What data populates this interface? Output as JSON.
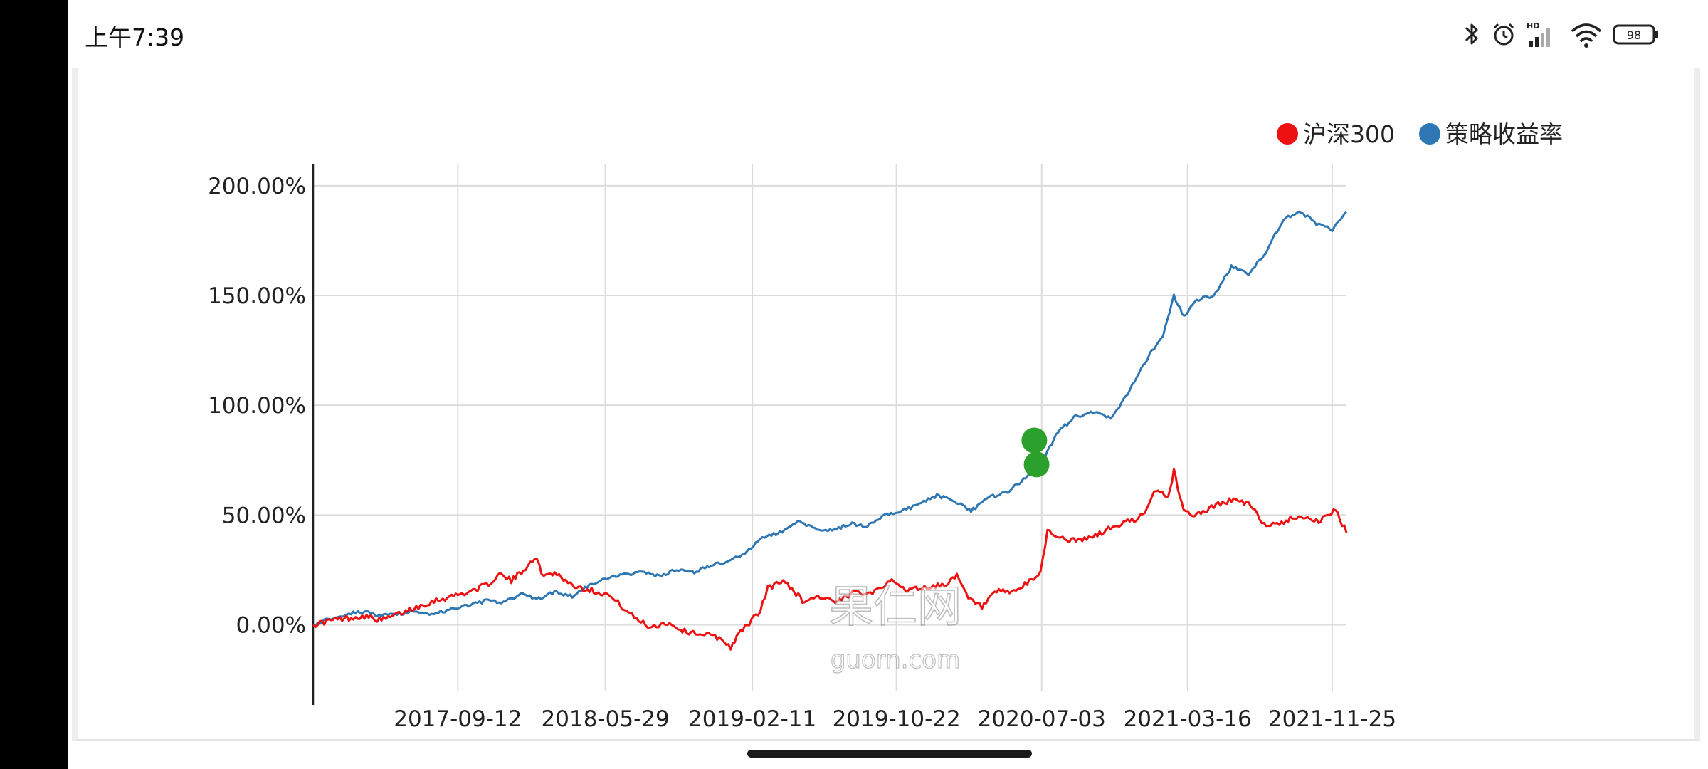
{
  "status_bar": {
    "time": "上午7:39",
    "battery": "98",
    "network_badge": "HD",
    "icons": [
      "bluetooth-icon",
      "alarm-icon",
      "cellular-signal-icon",
      "wifi-icon",
      "battery-icon"
    ]
  },
  "watermark": {
    "line1": "果仁网",
    "line2": "guorn.com"
  },
  "chart_data": {
    "type": "line",
    "title": "",
    "xlabel": "",
    "ylabel": "",
    "x_start": "2017-01-01",
    "x_end": "2021-12-20",
    "x_ticks": [
      "2017-09-12",
      "2018-05-29",
      "2019-02-11",
      "2019-10-22",
      "2020-07-03",
      "2021-03-16",
      "2021-11-25"
    ],
    "y_ticks": [
      "0.00%",
      "50.00%",
      "100.00%",
      "150.00%",
      "200.00%"
    ],
    "ylim": [
      -30,
      210
    ],
    "grid": true,
    "legend_position": "top-right",
    "colors": {
      "hs300": "#ee1111",
      "strategy": "#2f77b3",
      "marker": "#2ca02c"
    },
    "series": [
      {
        "name": "沪深300",
        "x": [
          "2017-01-01",
          "2017-02-01",
          "2017-03-01",
          "2017-04-01",
          "2017-05-01",
          "2017-06-01",
          "2017-07-01",
          "2017-08-01",
          "2017-09-01",
          "2017-10-01",
          "2017-11-01",
          "2017-11-25",
          "2017-12-15",
          "2018-01-05",
          "2018-01-25",
          "2018-02-10",
          "2018-03-01",
          "2018-04-01",
          "2018-05-01",
          "2018-06-01",
          "2018-06-20",
          "2018-07-15",
          "2018-08-15",
          "2018-09-15",
          "2018-10-15",
          "2018-11-15",
          "2018-12-15",
          "2019-01-04",
          "2019-01-25",
          "2019-02-25",
          "2019-03-10",
          "2019-04-10",
          "2019-05-10",
          "2019-06-10",
          "2019-07-10",
          "2019-08-10",
          "2019-09-10",
          "2019-10-10",
          "2019-11-10",
          "2019-12-10",
          "2020-01-10",
          "2020-02-05",
          "2020-02-25",
          "2020-03-20",
          "2020-04-15",
          "2020-05-15",
          "2020-06-15",
          "2020-07-01",
          "2020-07-13",
          "2020-08-01",
          "2020-09-01",
          "2020-10-01",
          "2020-11-01",
          "2020-12-01",
          "2020-12-31",
          "2021-01-20",
          "2021-02-10",
          "2021-02-20",
          "2021-03-09",
          "2021-04-01",
          "2021-05-01",
          "2021-06-01",
          "2021-07-01",
          "2021-08-01",
          "2021-09-01",
          "2021-10-01",
          "2021-11-01",
          "2021-12-01",
          "2021-12-20"
        ],
        "y": [
          0,
          2,
          3,
          4,
          2,
          5,
          8,
          11,
          13,
          15,
          18,
          23,
          20,
          25,
          31,
          22,
          24,
          18,
          16,
          14,
          10,
          4,
          -1,
          1,
          -3,
          -4,
          -6,
          -10,
          -2,
          6,
          17,
          20,
          11,
          13,
          10,
          15,
          15,
          20,
          16,
          17,
          18,
          22,
          12,
          8,
          15,
          15,
          20,
          24,
          43,
          40,
          38,
          40,
          44,
          47,
          50,
          62,
          58,
          70,
          52,
          50,
          54,
          57,
          55,
          45,
          47,
          50,
          47,
          52,
          42
        ]
      },
      {
        "name": "策略收益率",
        "x": [
          "2017-01-01",
          "2017-02-01",
          "2017-03-01",
          "2017-04-01",
          "2017-05-01",
          "2017-06-01",
          "2017-07-01",
          "2017-08-01",
          "2017-09-01",
          "2017-10-01",
          "2017-11-01",
          "2017-12-01",
          "2018-01-01",
          "2018-02-01",
          "2018-03-01",
          "2018-04-01",
          "2018-05-01",
          "2018-06-01",
          "2018-07-01",
          "2018-08-01",
          "2018-09-01",
          "2018-10-01",
          "2018-11-01",
          "2018-12-01",
          "2019-01-01",
          "2019-02-01",
          "2019-03-01",
          "2019-04-01",
          "2019-05-01",
          "2019-06-01",
          "2019-07-01",
          "2019-08-01",
          "2019-09-01",
          "2019-10-01",
          "2019-11-01",
          "2019-12-01",
          "2020-01-01",
          "2020-02-01",
          "2020-03-01",
          "2020-04-01",
          "2020-05-01",
          "2020-06-01",
          "2020-07-01",
          "2020-08-01",
          "2020-09-01",
          "2020-10-01",
          "2020-11-01",
          "2020-12-01",
          "2021-01-01",
          "2021-02-01",
          "2021-02-20",
          "2021-03-10",
          "2021-04-01",
          "2021-05-01",
          "2021-06-01",
          "2021-07-01",
          "2021-08-01",
          "2021-09-01",
          "2021-10-01",
          "2021-11-01",
          "2021-11-25",
          "2021-12-20"
        ],
        "y": [
          0,
          3,
          5,
          6,
          4,
          5,
          6,
          5,
          7,
          9,
          11,
          10,
          14,
          12,
          15,
          13,
          18,
          21,
          23,
          24,
          22,
          25,
          24,
          27,
          29,
          33,
          40,
          42,
          47,
          44,
          43,
          46,
          45,
          50,
          52,
          55,
          59,
          56,
          52,
          58,
          60,
          66,
          73,
          88,
          95,
          97,
          94,
          105,
          120,
          132,
          150,
          140,
          148,
          150,
          163,
          160,
          170,
          185,
          188,
          182,
          180,
          188
        ]
      }
    ],
    "markers": [
      {
        "x": "2020-06-20",
        "y": 84
      },
      {
        "x": "2020-06-24",
        "y": 73
      }
    ]
  }
}
